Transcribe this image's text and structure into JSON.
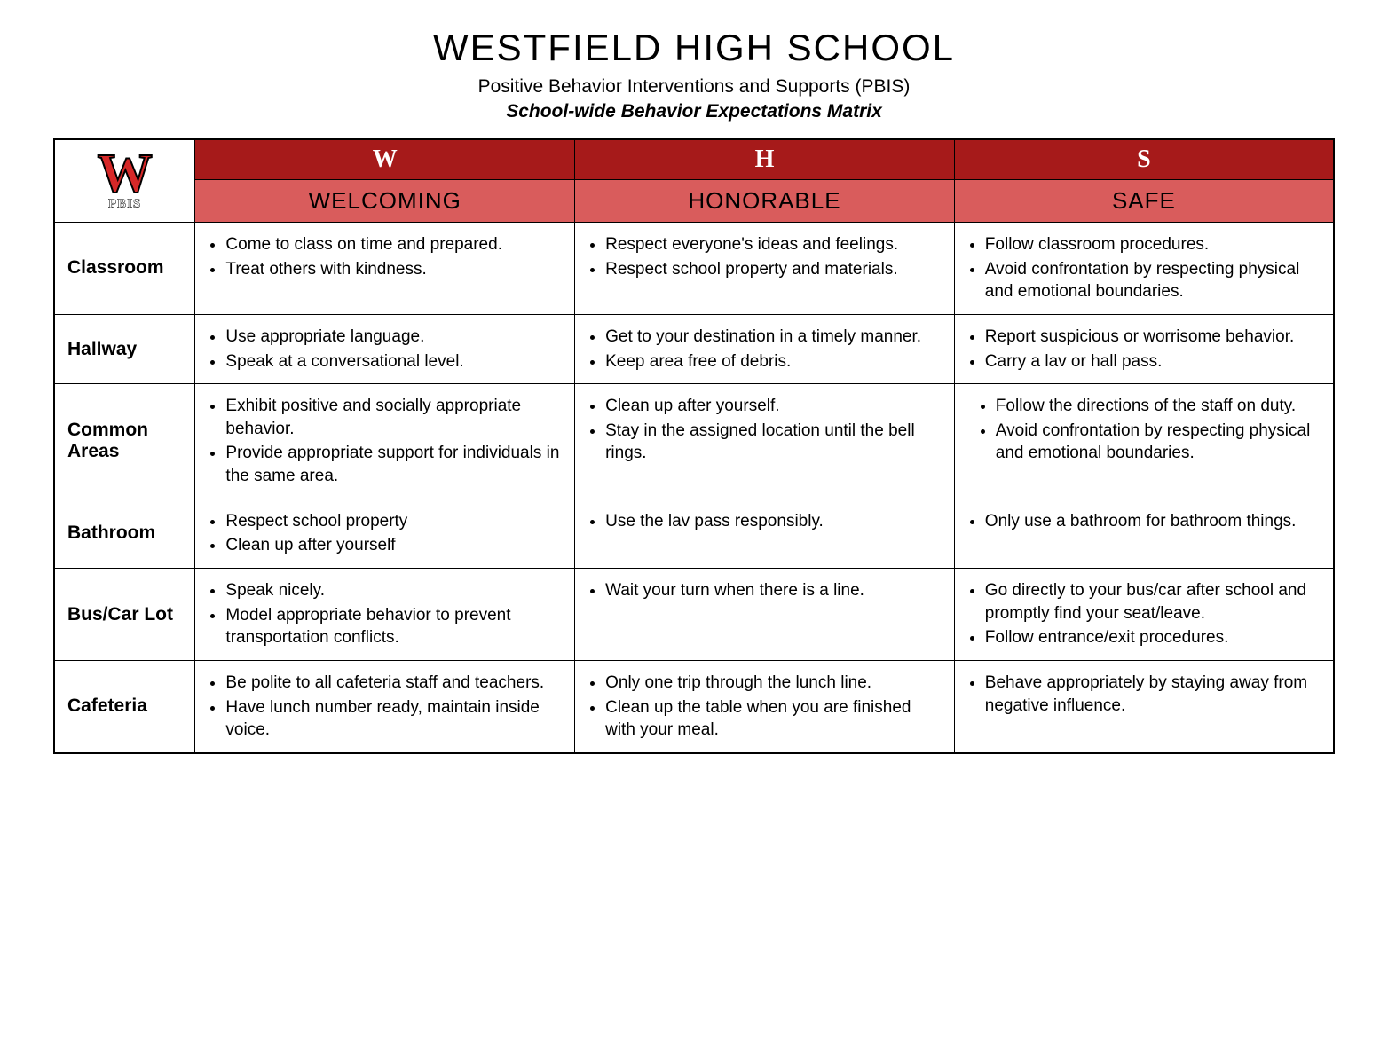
{
  "colors": {
    "header_dark": "#a61a1a",
    "header_light": "#d95c5c",
    "logo_red": "#d62828",
    "text": "#000000",
    "background": "#ffffff",
    "border": "#000000"
  },
  "typography": {
    "title_font": "Impact",
    "body_font": "Century Gothic",
    "title_size": 42,
    "header_letter_size": 28,
    "header_word_size": 26,
    "row_label_size": 21,
    "cell_size": 19
  },
  "header": {
    "title": "WESTFIELD HIGH SCHOOL",
    "subtitle1": "Positive Behavior Interventions and Supports (PBIS)",
    "subtitle2": "School-wide Behavior Expectations Matrix"
  },
  "logo": {
    "letter": "W",
    "subtext": "PBIS"
  },
  "columns": [
    {
      "letter": "W",
      "word": "WELCOMING"
    },
    {
      "letter": "H",
      "word": "HONORABLE"
    },
    {
      "letter": "S",
      "word": "SAFE"
    }
  ],
  "rows": [
    {
      "label": "Classroom",
      "cells": [
        [
          "Come to class on time and prepared.",
          "Treat others with kindness."
        ],
        [
          "Respect everyone's  ideas and feelings.",
          "Respect school property and materials."
        ],
        [
          "Follow classroom procedures.",
          "Avoid confrontation by respecting physical and emotional boundaries."
        ]
      ]
    },
    {
      "label": "Hallway",
      "cells": [
        [
          "Use appropriate language.",
          "Speak at a conversational level."
        ],
        [
          "Get to your destination in a timely manner.",
          "Keep area free of debris."
        ],
        [
          "Report suspicious or worrisome behavior.",
          "Carry a lav or hall pass."
        ]
      ]
    },
    {
      "label": "Common Areas",
      "cells": [
        [
          "Exhibit positive and socially appropriate behavior.",
          "Provide appropriate support for individuals in the same area."
        ],
        [
          "Clean up after yourself.",
          "Stay in the assigned location until the bell rings."
        ],
        [
          "Follow the directions of the staff on duty.",
          "Avoid confrontation by respecting physical and emotional boundaries."
        ]
      ]
    },
    {
      "label": "Bathroom",
      "cells": [
        [
          "Respect school property",
          "Clean up after yourself"
        ],
        [
          "Use the lav pass responsibly."
        ],
        [
          "Only use a bathroom for bathroom things."
        ]
      ]
    },
    {
      "label": "Bus/Car Lot",
      "cells": [
        [
          "Speak nicely.",
          "Model appropriate behavior to prevent transportation conflicts."
        ],
        [
          "Wait your turn when there is a line."
        ],
        [
          "Go directly to your bus/car after school and promptly find your seat/leave.",
          "Follow entrance/exit procedures."
        ]
      ]
    },
    {
      "label": "Cafeteria",
      "cells": [
        [
          "Be polite to all cafeteria staff and teachers.",
          "Have lunch number ready, maintain inside voice."
        ],
        [
          "Only one trip through the lunch line.",
          "Clean up the table when you are finished with your meal."
        ],
        [
          "Behave appropriately by staying away from negative influence."
        ]
      ]
    }
  ]
}
